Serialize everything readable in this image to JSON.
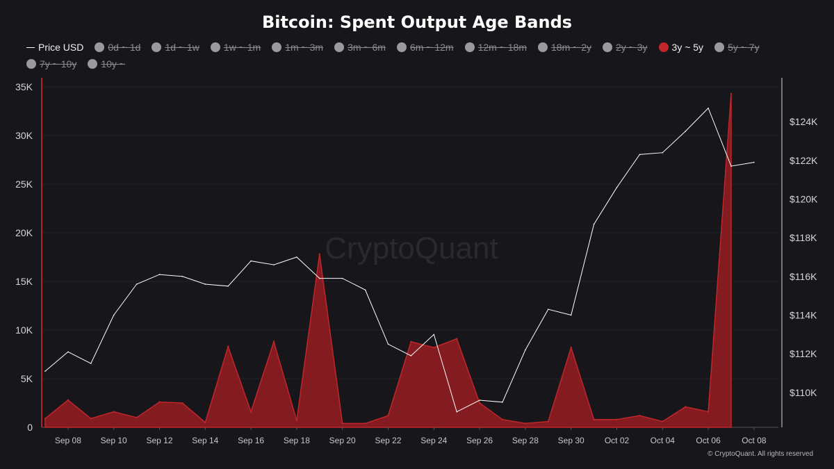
{
  "chart_data": {
    "type": "area",
    "title": "Bitcoin: Spent Output Age Bands",
    "watermark": "CryptoQuant",
    "credit": "© CryptoQuant. All rights reserved",
    "legend": [
      {
        "label": "Price USD",
        "kind": "line",
        "active": true
      },
      {
        "label": "0d ~ 1d",
        "kind": "dot",
        "active": false
      },
      {
        "label": "1d ~ 1w",
        "kind": "dot",
        "active": false
      },
      {
        "label": "1w ~ 1m",
        "kind": "dot",
        "active": false
      },
      {
        "label": "1m ~ 3m",
        "kind": "dot",
        "active": false
      },
      {
        "label": "3m ~ 6m",
        "kind": "dot",
        "active": false
      },
      {
        "label": "6m ~ 12m",
        "kind": "dot",
        "active": false
      },
      {
        "label": "12m ~ 18m",
        "kind": "dot",
        "active": false
      },
      {
        "label": "18m ~ 2y",
        "kind": "dot",
        "active": false
      },
      {
        "label": "2y ~ 3y",
        "kind": "dot",
        "active": false
      },
      {
        "label": "3y ~ 5y",
        "kind": "dot",
        "active": true,
        "color": "#c0262a"
      },
      {
        "label": "5y ~ 7y",
        "kind": "dot",
        "active": false
      },
      {
        "label": "7y ~ 10y",
        "kind": "dot",
        "active": false
      },
      {
        "label": "10y ~",
        "kind": "dot",
        "active": false
      }
    ],
    "x": [
      "Sep 07",
      "Sep 08",
      "Sep 09",
      "Sep 10",
      "Sep 11",
      "Sep 12",
      "Sep 13",
      "Sep 14",
      "Sep 15",
      "Sep 16",
      "Sep 17",
      "Sep 18",
      "Sep 19",
      "Sep 20",
      "Sep 21",
      "Sep 22",
      "Sep 23",
      "Sep 24",
      "Sep 25",
      "Sep 26",
      "Sep 27",
      "Sep 28",
      "Sep 29",
      "Sep 30",
      "Oct 01",
      "Oct 02",
      "Oct 03",
      "Oct 04",
      "Oct 05",
      "Oct 06",
      "Oct 07",
      "Oct 08"
    ],
    "x_tick_labels": [
      "Sep 08",
      "Sep 10",
      "Sep 12",
      "Sep 14",
      "Sep 16",
      "Sep 18",
      "Sep 20",
      "Sep 22",
      "Sep 24",
      "Sep 26",
      "Sep 28",
      "Sep 30",
      "Oct 02",
      "Oct 04",
      "Oct 06",
      "Oct 08"
    ],
    "series": [
      {
        "name": "3y ~ 5y",
        "type": "area",
        "axis": "left",
        "color": "#8e1c22",
        "values": [
          900,
          2800,
          900,
          1600,
          1000,
          2600,
          2500,
          500,
          8300,
          1600,
          8800,
          700,
          17800,
          400,
          400,
          1200,
          8800,
          8200,
          9100,
          2500,
          800,
          400,
          600,
          8200,
          800,
          800,
          1200,
          600,
          2100,
          1600,
          34300,
          null
        ]
      },
      {
        "name": "Price USD",
        "type": "line",
        "axis": "right",
        "color": "#ffffff",
        "values": [
          111100,
          112100,
          111500,
          114000,
          115600,
          116100,
          116000,
          115600,
          115500,
          116800,
          116600,
          117000,
          115900,
          115900,
          115300,
          112500,
          111900,
          113000,
          109000,
          109600,
          109500,
          112200,
          114300,
          114000,
          118700,
          120600,
          122300,
          122400,
          123500,
          124700,
          121700,
          121900
        ]
      }
    ],
    "y_left": {
      "ylim": [
        0,
        35000
      ],
      "ticks": [
        0,
        5000,
        10000,
        15000,
        20000,
        25000,
        30000,
        35000
      ],
      "tick_labels": [
        "0",
        "5K",
        "10K",
        "15K",
        "20K",
        "25K",
        "30K",
        "35K"
      ]
    },
    "y_right": {
      "ylim": [
        108200,
        125800
      ],
      "ticks": [
        110000,
        112000,
        114000,
        116000,
        118000,
        120000,
        122000,
        124000
      ],
      "tick_labels": [
        "$110K",
        "$112K",
        "$114K",
        "$116K",
        "$118K",
        "$120K",
        "$122K",
        "$124K"
      ]
    },
    "grid": true,
    "legend_position": "top-left"
  }
}
